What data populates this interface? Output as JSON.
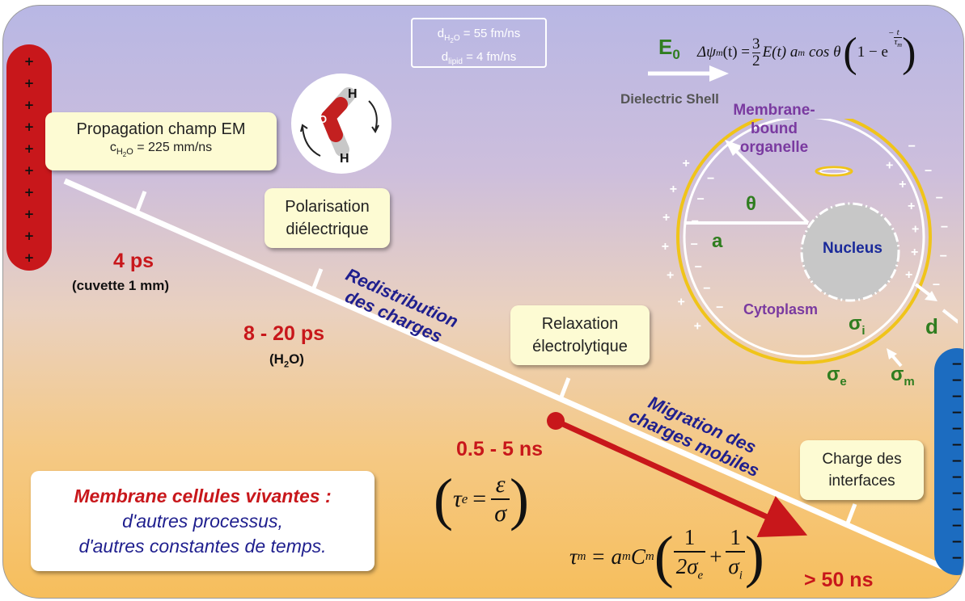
{
  "diffusion": {
    "line1_main": "d",
    "line1_sub": "H",
    "line1_sub2": "2",
    "line1_sub3": "O",
    "line1_rest": " = 55 fm/ns",
    "line2_main": "d",
    "line2_sub": "lipid",
    "line2_rest": " = 4 fm/ns"
  },
  "e0_label": {
    "main": "E",
    "sub": "0"
  },
  "membrane_equation": {
    "lhs": "Δψ",
    "lhs_sub": "m",
    "lhs_arg": "(t) =",
    "frac_num": "3",
    "frac_den": "2",
    "mid": "E(t) a",
    "mid_sub": "m",
    "trig": "cos θ",
    "bracket_open": "(",
    "one_minus": "1 − e",
    "exp_num": "t",
    "exp_den": "τ",
    "exp_den_sub": "m",
    "exp_minus": "−",
    "bracket_close": ")"
  },
  "left_bar": {
    "signs": [
      "+",
      "+",
      "+",
      "+",
      "+",
      "+",
      "+",
      "+",
      "+",
      "+"
    ],
    "color": "#c8171b"
  },
  "right_bar": {
    "signs": [
      "−",
      "−",
      "−",
      "−",
      "−",
      "−",
      "−",
      "−",
      "−",
      "−",
      "−",
      "−",
      "−"
    ],
    "color": "#1c6cc0"
  },
  "boxes": {
    "propagation": {
      "line1": "Propagation champ EM",
      "line2_main": "c",
      "line2_sub": "H",
      "line2_sub2": "2",
      "line2_sub3": "O",
      "line2_rest": " = 225 mm/ns"
    },
    "polarisation": {
      "line1": "Polarisation",
      "line2": "diélectrique"
    },
    "relaxation": {
      "line1": "Relaxation",
      "line2": "électrolytique"
    },
    "charge": {
      "line1": "Charge des",
      "line2": "interfaces"
    },
    "membrane_note": {
      "line1": "Membrane cellules vivantes :",
      "line2": "d'autres processus,",
      "line3": "d'autres constantes de temps."
    }
  },
  "molecule": {
    "o": "O",
    "h1": "H",
    "h2": "H"
  },
  "times": {
    "t1": "4 ps",
    "t1_sub": "(cuvette 1 mm)",
    "t2": "8 - 20 ps",
    "t2_sub_open": "(H",
    "t2_sub_sub": "2",
    "t2_sub_close": "O)",
    "t3": "0.5 - 5 ns",
    "t4": "> 50 ns"
  },
  "tau_e": {
    "tau": "τ",
    "tau_sub": "e",
    "eq": "=",
    "num": "ε",
    "den": "σ"
  },
  "tau_m": {
    "tau": "τ",
    "tau_sub": "m",
    "eq": "= a",
    "a_sub": "m",
    "c": "C",
    "c_sub": "m",
    "f1_num": "1",
    "f1_den": "2σ",
    "f1_den_sub": "e",
    "plus": "+",
    "f2_num": "1",
    "f2_den": "σ",
    "f2_den_sub": "i"
  },
  "phases": {
    "redistribution": [
      "Redistribution",
      "des charges"
    ],
    "migration": [
      "Migration des",
      "charges mobiles"
    ]
  },
  "cell": {
    "dielectric_shell": "Dielectric Shell",
    "organelle": [
      "Membrane-",
      "bound",
      "organelle"
    ],
    "nucleus": "Nucleus",
    "cytoplasm": "Cytoplasm",
    "theta": "θ",
    "a": "a",
    "d": "d",
    "sigma_i": "σ",
    "sigma_i_sub": "i",
    "sigma_e": "σ",
    "sigma_e_sub": "e",
    "sigma_m": "σ",
    "sigma_m_sub": "m",
    "outer_plus": "+",
    "inner_minus": "−",
    "outer_minus": "−",
    "inner_plus": "+",
    "colors": {
      "ring": "#f0c419",
      "nucleus": "#c7c7c7",
      "organelle_text": "#7a3aa0",
      "nucleus_text": "#1a2a9a",
      "label_green": "#2f7d1f"
    }
  }
}
